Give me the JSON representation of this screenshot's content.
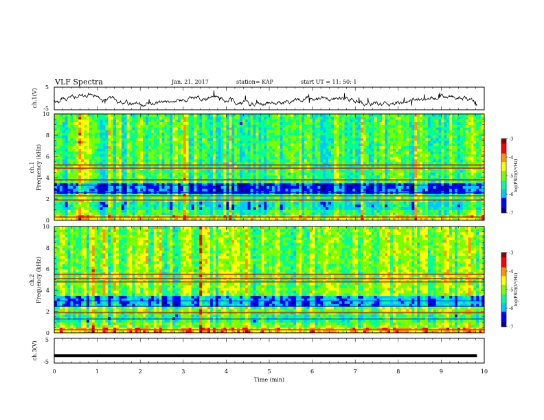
{
  "header": {
    "title": "VLF Spectra",
    "date": "Jan. 21, 2017",
    "station": "station= KAP",
    "start": "start  UT  =   11: 50: 1"
  },
  "colors": {
    "background": "#ffffff",
    "axes": "#000000",
    "colormap": [
      "#00008f",
      "#0000ff",
      "#00c8ff",
      "#00ff96",
      "#78ff00",
      "#ffff00",
      "#ff9600",
      "#ff0000",
      "#960000"
    ]
  },
  "chart_data": [
    {
      "id": "ch1-waveform",
      "type": "line",
      "ylabel": "ch.1(V)",
      "yticks": [
        "5",
        "-5"
      ],
      "ylim": [
        -5,
        5
      ],
      "xlim": [
        0,
        9.83
      ],
      "description_values": "noisy waveform approx. between -4 and +2 V",
      "color": "#000000"
    },
    {
      "id": "ch1-spectrogram",
      "type": "heatmap",
      "ylabel": "ch.1",
      "ylabel2": "Frequency (kHz)",
      "ylim": [
        0,
        10
      ],
      "yticks": [
        "0",
        "2",
        "4",
        "6",
        "8",
        "10"
      ],
      "xlim": [
        0,
        9.83
      ],
      "strong_bands_khz": [
        0.3,
        1.9,
        2.3,
        3.8,
        4.9,
        5.2
      ],
      "weak_bands_khz": [
        2.6,
        3.3
      ],
      "colorbar": {
        "label": "log(PSD)(V²/Hz)",
        "ticks": [
          "-3",
          "-4",
          "-5",
          "-6",
          "-7"
        ],
        "range": [
          -7,
          -3
        ]
      }
    },
    {
      "id": "ch2-spectrogram",
      "type": "heatmap",
      "ylabel": "ch.2",
      "ylabel2": "Frequency (kHz)",
      "ylim": [
        0,
        10
      ],
      "yticks": [
        "0",
        "2",
        "4",
        "6",
        "8",
        "10"
      ],
      "xlim": [
        0,
        9.83
      ],
      "strong_bands_khz": [
        0.3,
        1.9,
        4.8,
        5.1,
        5.5
      ],
      "weak_bands_khz": [
        2.5,
        3.0,
        1.3
      ],
      "colorbar": {
        "label": "log(PSD)(V²/Hz)",
        "ticks": [
          "-3",
          "-4",
          "-5",
          "-6",
          "-7"
        ],
        "range": [
          -7,
          -3
        ]
      }
    },
    {
      "id": "ch3-line",
      "type": "line",
      "ylabel": "ch.3(V)",
      "yticks": [
        "5",
        "-5"
      ],
      "ylim": [
        -5,
        5
      ],
      "xlim": [
        0,
        9.83
      ],
      "constant_value": -2,
      "color": "#000000"
    }
  ],
  "xaxis": {
    "label": "Time (min)",
    "ticks": [
      "0",
      "1",
      "2",
      "3",
      "4",
      "5",
      "6",
      "7",
      "8",
      "9",
      "10"
    ],
    "range": [
      0,
      10
    ]
  }
}
